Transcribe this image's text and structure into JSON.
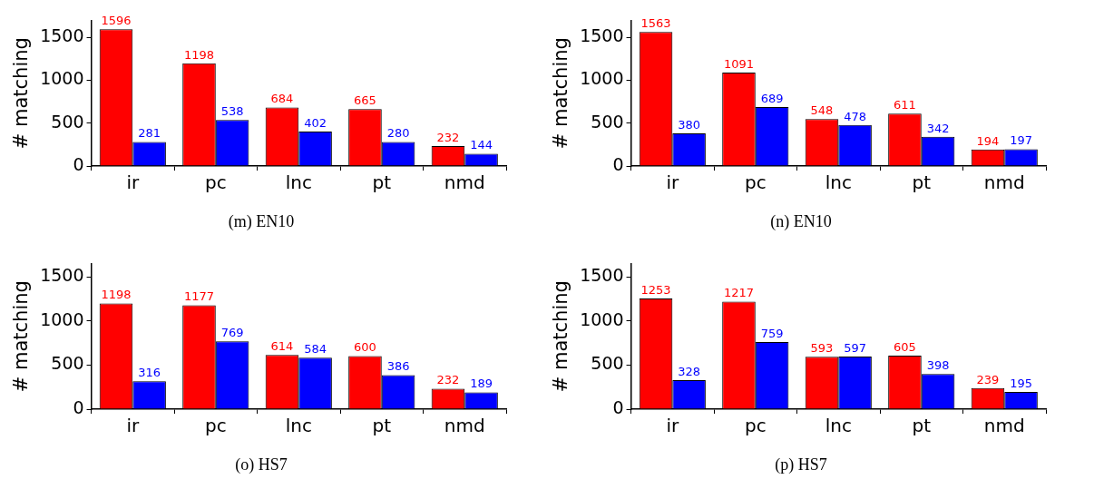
{
  "chart_data": [
    {
      "type": "bar",
      "title": "(m) EN10",
      "ylabel": "# matching",
      "categories": [
        "ir",
        "pc",
        "lnc",
        "pt",
        "nmd"
      ],
      "series": [
        {
          "color": "#ff0000",
          "values": [
            1596,
            1198,
            684,
            665,
            232
          ]
        },
        {
          "color": "#0000ff",
          "values": [
            281,
            538,
            402,
            280,
            144
          ]
        }
      ],
      "ylim": [
        0,
        1700
      ],
      "yticks": [
        0,
        500,
        1000,
        1500
      ],
      "data_labels": true,
      "grid": false
    },
    {
      "type": "bar",
      "title": "(n) EN10",
      "ylabel": "# matching",
      "categories": [
        "ir",
        "pc",
        "lnc",
        "pt",
        "nmd"
      ],
      "series": [
        {
          "color": "#ff0000",
          "values": [
            1563,
            1091,
            548,
            611,
            194
          ]
        },
        {
          "color": "#0000ff",
          "values": [
            380,
            689,
            478,
            342,
            197
          ]
        }
      ],
      "ylim": [
        0,
        1700
      ],
      "yticks": [
        0,
        500,
        1000,
        1500
      ],
      "data_labels": true,
      "grid": false
    },
    {
      "type": "bar",
      "title": "(o) HS7",
      "ylabel": "# matching",
      "categories": [
        "ir",
        "pc",
        "lnc",
        "pt",
        "nmd"
      ],
      "series": [
        {
          "color": "#ff0000",
          "values": [
            1198,
            1177,
            614,
            600,
            232
          ]
        },
        {
          "color": "#0000ff",
          "values": [
            316,
            769,
            584,
            386,
            189
          ]
        }
      ],
      "ylim": [
        0,
        1650
      ],
      "yticks": [
        0,
        500,
        1000,
        1500
      ],
      "data_labels": true,
      "grid": false
    },
    {
      "type": "bar",
      "title": "(p) HS7",
      "ylabel": "# matching",
      "categories": [
        "ir",
        "pc",
        "lnc",
        "pt",
        "nmd"
      ],
      "series": [
        {
          "color": "#ff0000",
          "values": [
            1253,
            1217,
            593,
            605,
            239
          ]
        },
        {
          "color": "#0000ff",
          "values": [
            328,
            759,
            597,
            398,
            195
          ]
        }
      ],
      "ylim": [
        0,
        1650
      ],
      "yticks": [
        0,
        500,
        1000,
        1500
      ],
      "data_labels": true,
      "grid": false
    }
  ]
}
